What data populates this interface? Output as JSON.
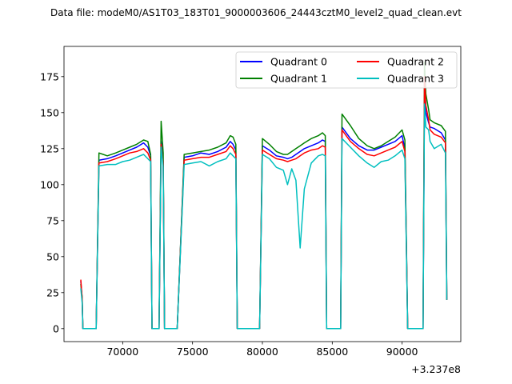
{
  "figure": {
    "suptitle": "Data file: modeM0/AS1T03_183T01_9000003606_24443cztM0_level2_quad_clean.evt",
    "x_offset_label": "+3.237e8"
  },
  "chart_data": {
    "type": "line",
    "title": "Data file: modeM0/AS1T03_183T01_9000003606_24443cztM0_level2_quad_clean.evt",
    "xlabel": "",
    "ylabel": "",
    "x_offset": 323700000,
    "x_offset_label": "+3.237e8",
    "xlim": [
      65800,
      94200
    ],
    "ylim": [
      -9,
      196
    ],
    "xticks": [
      70000,
      75000,
      80000,
      85000,
      90000
    ],
    "xtick_labels": [
      "70000",
      "75000",
      "80000",
      "85000",
      "90000"
    ],
    "yticks": [
      0,
      25,
      50,
      75,
      100,
      125,
      150,
      175
    ],
    "ytick_labels": [
      "0",
      "25",
      "50",
      "75",
      "100",
      "125",
      "150",
      "175"
    ],
    "grid": false,
    "legend": {
      "placement": "top-right",
      "columns": 2
    },
    "x": [
      67000,
      67100,
      67150,
      67600,
      68100,
      68300,
      68900,
      69500,
      70000,
      70500,
      71000,
      71500,
      71800,
      72000,
      72100,
      72250,
      72500,
      72600,
      72750,
      72900,
      73000,
      73200,
      73500,
      73700,
      73900,
      74400,
      75000,
      75600,
      76200,
      76800,
      77400,
      77700,
      77900,
      78100,
      78200,
      78400,
      79000,
      79700,
      79800,
      80000,
      80500,
      81000,
      81500,
      81800,
      82100,
      82400,
      82700,
      83000,
      83500,
      84000,
      84300,
      84500,
      84600,
      84700,
      85400,
      85600,
      85700,
      86300,
      86900,
      87500,
      88000,
      88500,
      89000,
      89500,
      90000,
      90200,
      90400,
      90500,
      91200,
      91400,
      91500,
      91600,
      91700,
      91900,
      92000,
      92300,
      92800,
      93100,
      93200
    ],
    "series": [
      {
        "name": "Quadrant 0",
        "color": "#0000ff",
        "values": [
          33,
          20,
          0,
          0,
          0,
          117,
          118,
          120,
          122,
          124,
          126,
          129,
          126,
          120,
          0,
          0,
          0,
          0,
          130,
          116,
          0,
          0,
          0,
          0,
          0,
          119,
          120,
          122,
          121,
          123,
          126,
          130,
          128,
          124,
          0,
          0,
          0,
          0,
          0,
          127,
          124,
          120,
          119,
          118,
          119,
          121,
          123,
          125,
          127,
          129,
          131,
          130,
          0,
          0,
          0,
          0,
          140,
          132,
          127,
          124,
          124,
          126,
          128,
          130,
          134,
          125,
          0,
          0,
          0,
          0,
          0,
          162,
          150,
          143,
          140,
          139,
          136,
          131,
          20
        ]
      },
      {
        "name": "Quadrant 1",
        "color": "#008000",
        "values": [
          31,
          22,
          0,
          0,
          0,
          122,
          120,
          122,
          124,
          126,
          128,
          131,
          130,
          121,
          0,
          0,
          0,
          0,
          144,
          122,
          0,
          0,
          0,
          0,
          0,
          121,
          122,
          123,
          124,
          126,
          129,
          134,
          133,
          128,
          0,
          0,
          0,
          0,
          0,
          132,
          128,
          123,
          121,
          121,
          123,
          125,
          127,
          129,
          132,
          134,
          136,
          134,
          0,
          0,
          0,
          0,
          149,
          141,
          132,
          127,
          125,
          127,
          130,
          133,
          138,
          131,
          0,
          0,
          0,
          0,
          0,
          185,
          163,
          152,
          145,
          143,
          141,
          137,
          20
        ]
      },
      {
        "name": "Quadrant 2",
        "color": "#ff0000",
        "values": [
          34,
          21,
          0,
          0,
          0,
          115,
          116,
          118,
          120,
          122,
          123,
          125,
          122,
          117,
          0,
          0,
          0,
          0,
          128,
          114,
          0,
          0,
          0,
          0,
          0,
          117,
          118,
          119,
          119,
          121,
          123,
          127,
          125,
          121,
          0,
          0,
          0,
          0,
          0,
          124,
          121,
          118,
          117,
          116,
          117,
          118,
          120,
          122,
          124,
          125,
          127,
          126,
          0,
          0,
          0,
          0,
          138,
          130,
          125,
          121,
          120,
          122,
          124,
          126,
          130,
          123,
          0,
          0,
          0,
          0,
          0,
          175,
          155,
          145,
          138,
          135,
          133,
          129,
          20
        ]
      },
      {
        "name": "Quadrant 3",
        "color": "#00bfbf",
        "values": [
          28,
          18,
          0,
          0,
          0,
          113,
          114,
          114,
          116,
          117,
          119,
          121,
          118,
          116,
          0,
          0,
          0,
          0,
          126,
          112,
          0,
          0,
          0,
          0,
          0,
          114,
          115,
          116,
          113,
          116,
          118,
          122,
          120,
          118,
          0,
          0,
          0,
          0,
          0,
          121,
          118,
          112,
          110,
          100,
          111,
          103,
          56,
          97,
          115,
          120,
          121,
          120,
          0,
          0,
          0,
          0,
          132,
          126,
          120,
          115,
          112,
          116,
          117,
          120,
          124,
          118,
          0,
          0,
          0,
          0,
          0,
          156,
          140,
          138,
          130,
          125,
          128,
          122,
          20
        ]
      }
    ]
  }
}
